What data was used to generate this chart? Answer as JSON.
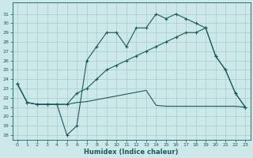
{
  "xlabel": "Humidex (Indice chaleur)",
  "bg_color": "#cce8e8",
  "line_color": "#1a5c5c",
  "grid_color": "#aacccc",
  "xlim": [
    -0.5,
    23.5
  ],
  "ylim": [
    17.5,
    32.2
  ],
  "xticks": [
    0,
    1,
    2,
    3,
    4,
    5,
    6,
    7,
    8,
    9,
    10,
    11,
    12,
    13,
    14,
    15,
    16,
    17,
    18,
    19,
    20,
    21,
    22,
    23
  ],
  "yticks": [
    18,
    19,
    20,
    21,
    22,
    23,
    24,
    25,
    26,
    27,
    28,
    29,
    30,
    31
  ],
  "line1_x": [
    0,
    1,
    2,
    3,
    4,
    5,
    6,
    7,
    8,
    9,
    10,
    11,
    12,
    13,
    14,
    15,
    16,
    17,
    18,
    19,
    20,
    21,
    22,
    23
  ],
  "line1_y": [
    23.5,
    21.5,
    21.3,
    21.3,
    21.3,
    21.3,
    21.5,
    21.6,
    21.8,
    22.0,
    22.2,
    22.4,
    22.6,
    22.8,
    21.2,
    21.1,
    21.1,
    21.1,
    21.1,
    21.1,
    21.1,
    21.1,
    21.1,
    21.0
  ],
  "line2_x": [
    0,
    1,
    2,
    3,
    4,
    5,
    6,
    7,
    8,
    9,
    10,
    11,
    12,
    13,
    14,
    15,
    16,
    17,
    18,
    19,
    20,
    21,
    22,
    23
  ],
  "line2_y": [
    23.5,
    21.5,
    21.3,
    21.3,
    21.3,
    18.0,
    19.0,
    26.0,
    27.5,
    29.0,
    29.0,
    27.5,
    29.5,
    29.5,
    31.0,
    30.5,
    31.0,
    30.5,
    30.0,
    29.5,
    26.5,
    25.0,
    22.5,
    21.0
  ],
  "line3_x": [
    0,
    1,
    2,
    3,
    4,
    5,
    6,
    7,
    8,
    9,
    10,
    11,
    12,
    13,
    14,
    15,
    16,
    17,
    18,
    19,
    20,
    21,
    22,
    23
  ],
  "line3_y": [
    23.5,
    21.5,
    21.3,
    21.3,
    21.3,
    21.3,
    22.5,
    23.0,
    24.0,
    25.0,
    25.5,
    26.0,
    26.5,
    27.0,
    27.5,
    28.0,
    28.5,
    29.0,
    29.0,
    29.5,
    26.5,
    25.0,
    22.5,
    21.0
  ]
}
